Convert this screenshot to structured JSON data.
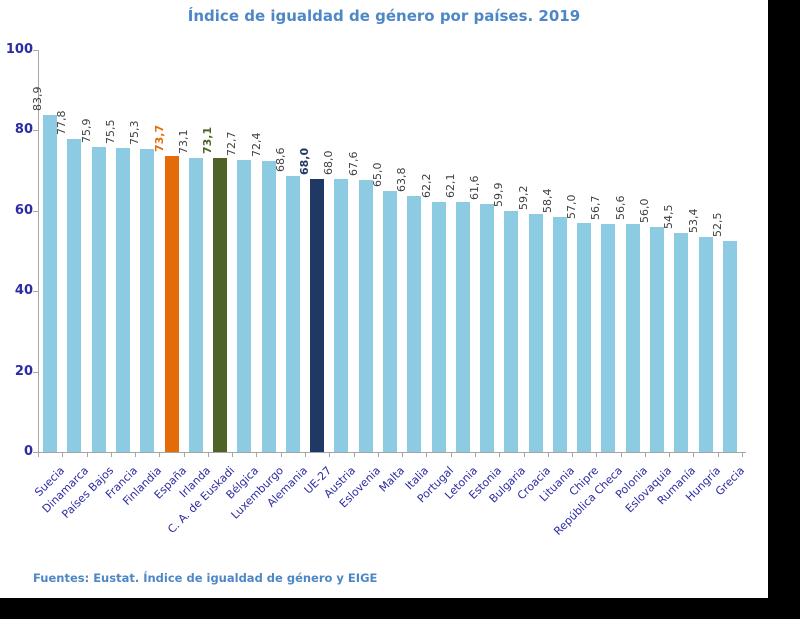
{
  "title": "Índice de igualdad de género por países. 2019",
  "footer": "Fuentes: Eustat. Índice de igualdad de género y EIGE",
  "colors": {
    "title_text": "#4E87C6",
    "footer_text": "#4E87C6",
    "axis_line": "#A6A6A6",
    "y_tick_label": "#2B2BA3",
    "category_label": "#2B2BA3",
    "value_label": "#3F3F3F",
    "bar_default": "#8DCBE3"
  },
  "chart_data": {
    "type": "bar",
    "title": "Índice de igualdad de género por países. 2019",
    "xlabel": "",
    "ylabel": "",
    "ylim": [
      0,
      100
    ],
    "yticks": [
      0,
      20,
      40,
      60,
      80,
      100
    ],
    "grid": false,
    "legend_position": "none",
    "source_note": "Fuentes: Eustat. Índice de igualdad de género y EIGE",
    "categories": [
      "Suecia",
      "Dinamarca",
      "Países Bajos",
      "Francia",
      "Finlandia",
      "España",
      "Irlanda",
      "C. A. de Euskadi",
      "Bélgica",
      "Luxemburgo",
      "Alemania",
      "UE-27",
      "Austria",
      "Eslovenia",
      "Malta",
      "Italia",
      "Portugal",
      "Letonia",
      "Estonia",
      "Bulgaria",
      "Croacia",
      "Lituania",
      "Chipre",
      "República Checa",
      "Polonia",
      "Eslovaquia",
      "Rumanía",
      "Hungría",
      "Grecia"
    ],
    "values": [
      83.9,
      77.8,
      75.9,
      75.5,
      75.3,
      73.7,
      73.1,
      73.1,
      72.7,
      72.4,
      68.6,
      68.0,
      68.0,
      67.6,
      65.0,
      63.8,
      62.2,
      62.1,
      61.6,
      59.9,
      59.2,
      58.4,
      57.0,
      56.7,
      56.6,
      56.0,
      54.5,
      53.4,
      52.5
    ],
    "value_labels": [
      "83,9",
      "77,8",
      "75,9",
      "75,5",
      "75,3",
      "73,7",
      "73,1",
      "73,1",
      "72,7",
      "72,4",
      "68,6",
      "68,0",
      "68,0",
      "67,6",
      "65,0",
      "63,8",
      "62,2",
      "62,1",
      "61,6",
      "59,9",
      "59,2",
      "58,4",
      "57,0",
      "56,7",
      "56,6",
      "56,0",
      "54,5",
      "53,4",
      "52,5"
    ],
    "highlights": [
      {
        "index": 5,
        "category": "España",
        "color": "#E36C09"
      },
      {
        "index": 7,
        "category": "C. A. de Euskadi",
        "color": "#4F6228"
      },
      {
        "index": 11,
        "category": "UE-27",
        "color": "#1F3864"
      }
    ]
  }
}
